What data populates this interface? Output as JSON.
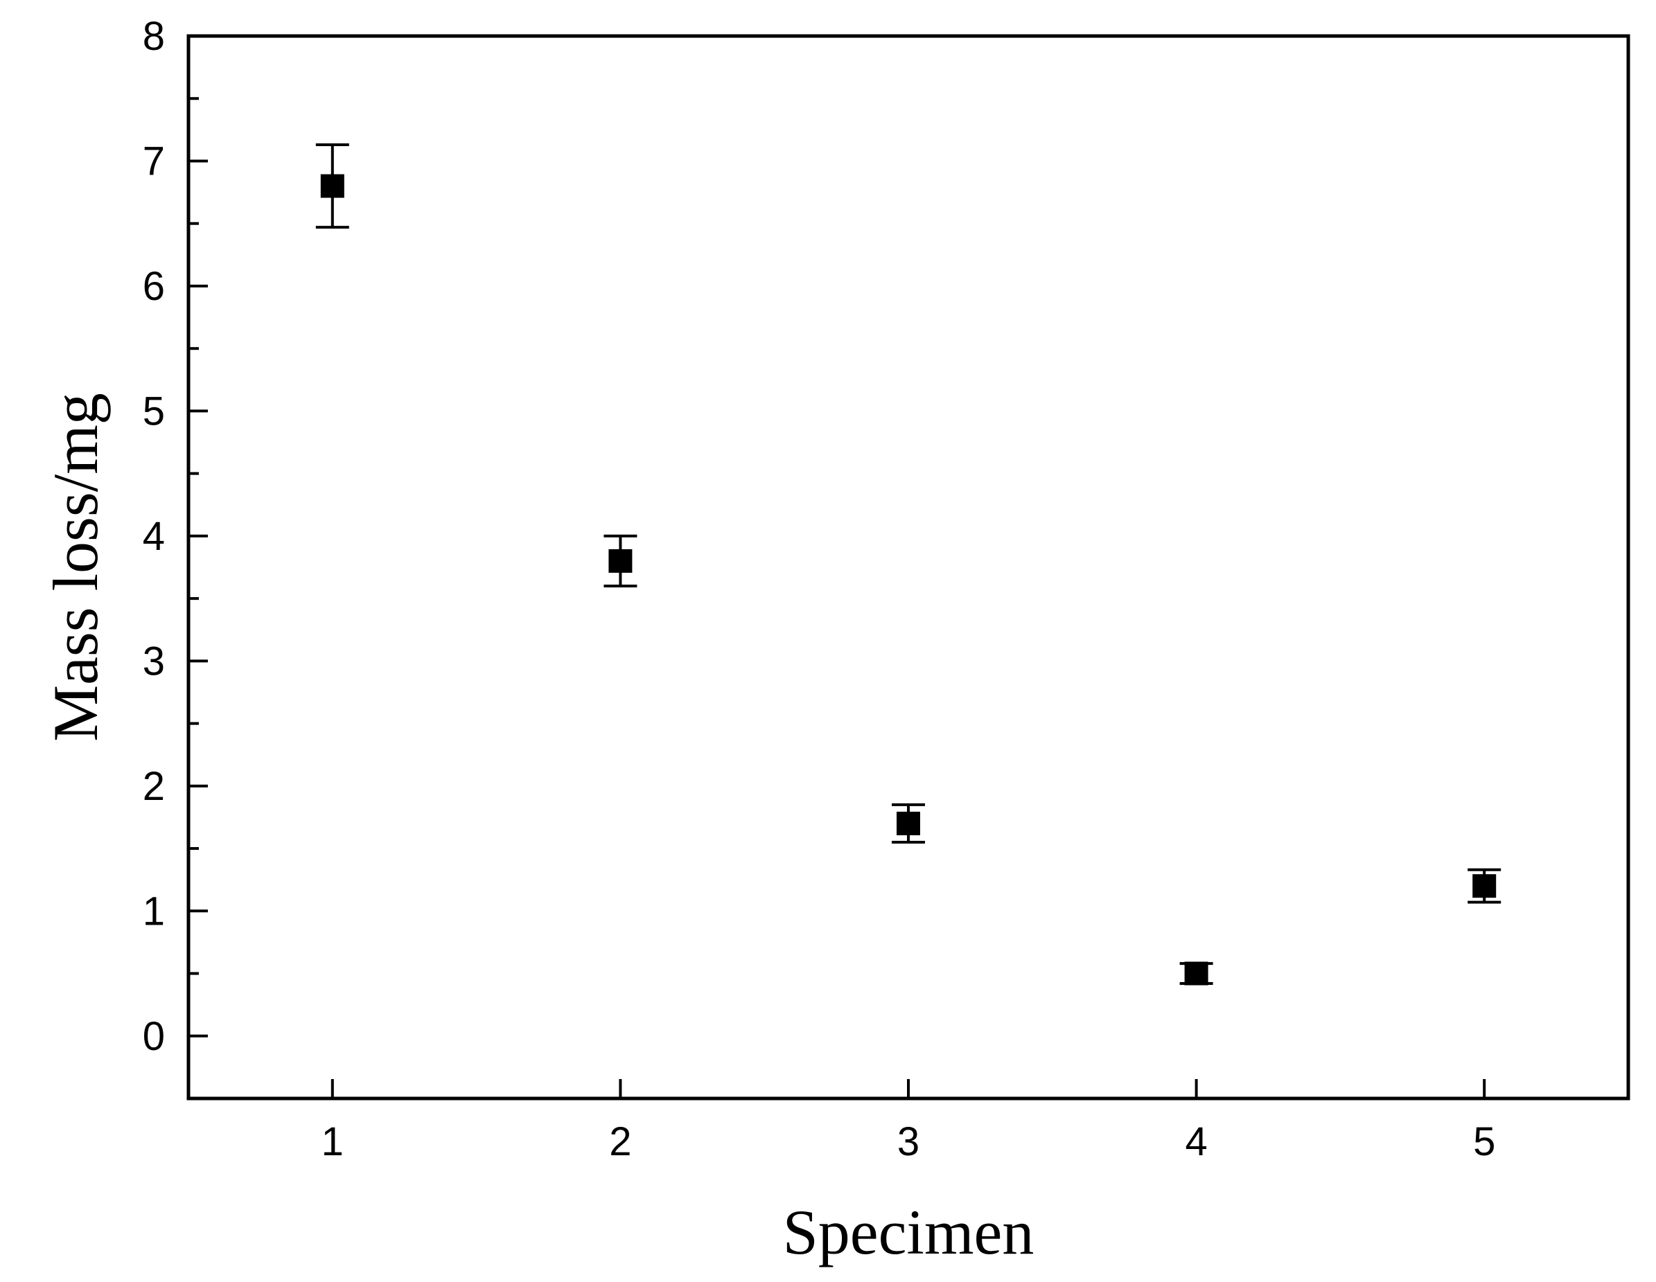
{
  "chart_data": {
    "type": "scatter",
    "title": "",
    "xlabel": "Specimen",
    "ylabel": "Mass loss/mg",
    "x": [
      1,
      2,
      3,
      4,
      5
    ],
    "xlim": [
      0.5,
      5.5
    ],
    "ylim": [
      -0.5,
      8
    ],
    "x_ticks": [
      "1",
      "2",
      "3",
      "4",
      "5"
    ],
    "y_ticks": [
      "0",
      "1",
      "2",
      "3",
      "4",
      "5",
      "6",
      "7",
      "8"
    ],
    "grid": false,
    "series": [
      {
        "marker": "square",
        "color": "#000000",
        "values": [
          6.8,
          3.8,
          1.7,
          0.5,
          1.2
        ],
        "error_upper": [
          0.33,
          0.2,
          0.15,
          0.08,
          0.13
        ],
        "error_lower": [
          0.33,
          0.2,
          0.15,
          0.08,
          0.13
        ]
      }
    ]
  }
}
